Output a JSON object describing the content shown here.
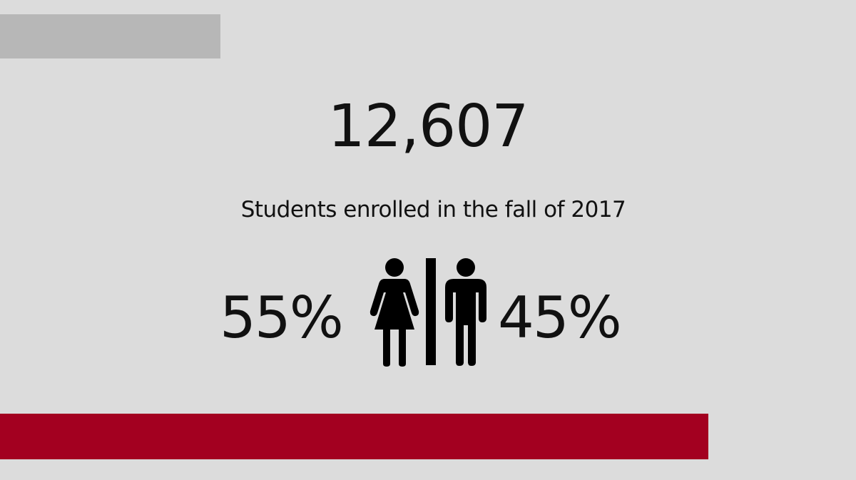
{
  "stats": {
    "total_enrolled": "12,607",
    "subtitle": "Students enrolled in the fall of 2017",
    "female_percent": "55%",
    "male_percent": "45%"
  },
  "icons": {
    "female": "woman-restroom-icon",
    "male": "man-restroom-icon",
    "divider": "divider-bar"
  },
  "colors": {
    "background": "#dcdcdc",
    "top_bar": "#b7b7b7",
    "bottom_bar": "#a30020",
    "text": "#111111",
    "icon": "#000000"
  }
}
